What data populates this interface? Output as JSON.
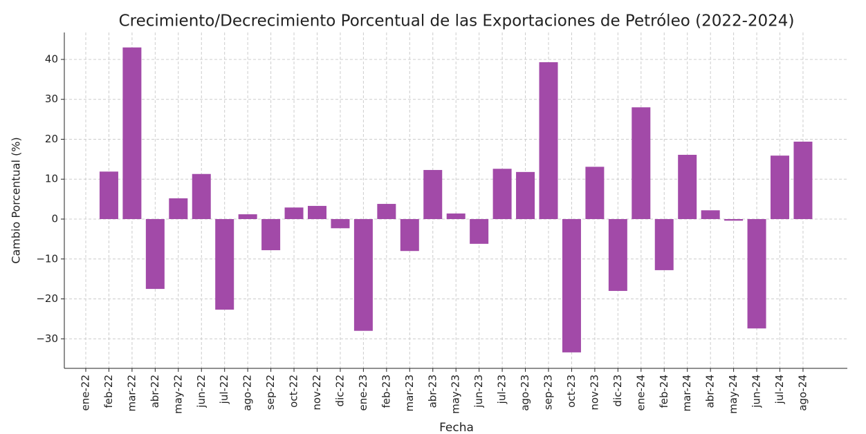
{
  "chart_data": {
    "type": "bar",
    "title": "Crecimiento/Decrecimiento Porcentual de las Exportaciones de Petróleo (2022-2024)",
    "x_label": "Fecha",
    "y_label": "Cambio Porcentual (%)",
    "categories": [
      "ene-22",
      "feb-22",
      "mar-22",
      "abr-22",
      "may-22",
      "jun-22",
      "jul-22",
      "ago-22",
      "sep-22",
      "oct-22",
      "nov-22",
      "dic-22",
      "ene-23",
      "feb-23",
      "mar-23",
      "abr-23",
      "may-23",
      "jun-23",
      "jul-23",
      "ago-23",
      "sep-23",
      "oct-23",
      "nov-23",
      "dic-23",
      "ene-24",
      "feb-24",
      "mar-24",
      "abr-24",
      "may-24",
      "jun-24",
      "jul-24",
      "ago-24"
    ],
    "values": [
      null,
      11.9,
      43,
      -17.5,
      5.2,
      11.3,
      -22.7,
      1.2,
      -7.8,
      2.9,
      3.3,
      -2.3,
      -28,
      3.8,
      -8,
      12.3,
      1.4,
      -6.2,
      12.6,
      11.8,
      39.3,
      -33.4,
      13.1,
      -18,
      28,
      -12.8,
      16.1,
      2.2,
      -0.4,
      -27.4,
      15.9,
      19.4
    ],
    "color": "#a24aa8",
    "ylim": [
      -37.4,
      46.75
    ],
    "yticks": [
      {
        "value": -30,
        "label": "−30"
      },
      {
        "value": -20,
        "label": "−20"
      },
      {
        "value": -10,
        "label": "−10"
      },
      0,
      10,
      20,
      30,
      40
    ],
    "grid": true
  }
}
